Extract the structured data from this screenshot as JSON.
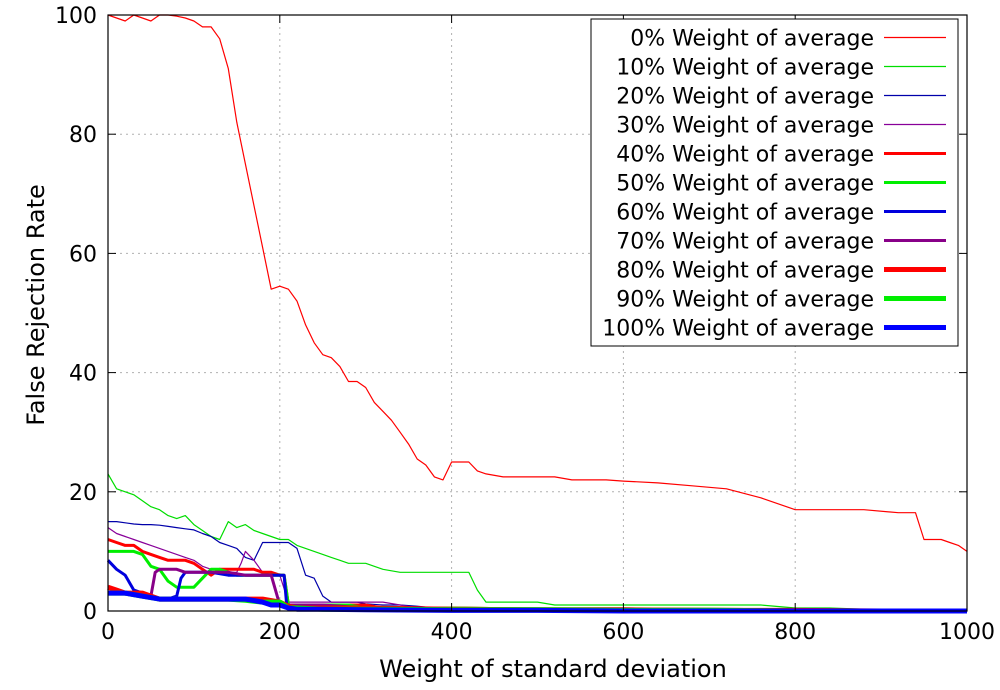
{
  "chart_data": {
    "type": "line",
    "title": "",
    "xlabel": "Weight of standard deviation",
    "ylabel": "False Rejection Rate",
    "xlim": [
      0,
      1000
    ],
    "ylim": [
      0,
      100
    ],
    "x_ticks": [
      0,
      200,
      400,
      600,
      800,
      1000
    ],
    "y_ticks": [
      0,
      20,
      40,
      60,
      80,
      100
    ],
    "grid": true,
    "legend_position": "top-right",
    "series": [
      {
        "name": "0% Weight of average",
        "color": "#ff0000",
        "weight": "thin",
        "x": [
          0,
          10,
          20,
          30,
          40,
          50,
          60,
          70,
          80,
          90,
          100,
          110,
          120,
          130,
          140,
          150,
          160,
          170,
          180,
          190,
          200,
          210,
          220,
          230,
          240,
          250,
          260,
          270,
          280,
          290,
          300,
          310,
          320,
          330,
          340,
          350,
          360,
          370,
          380,
          390,
          400,
          410,
          420,
          430,
          440,
          460,
          480,
          500,
          520,
          540,
          560,
          580,
          600,
          640,
          680,
          720,
          760,
          800,
          840,
          880,
          920,
          940,
          950,
          960,
          970,
          980,
          990,
          1000
        ],
        "values": [
          100,
          99.5,
          99,
          100,
          99.5,
          99,
          100,
          100,
          99.8,
          99.5,
          99,
          98,
          98,
          96,
          91,
          82,
          75,
          68,
          61,
          54,
          54.5,
          54,
          52,
          48,
          45,
          43,
          42.5,
          41,
          38.5,
          38.5,
          37.5,
          35,
          33.5,
          32,
          30,
          28,
          25.5,
          24.5,
          22.5,
          22,
          25,
          25,
          25,
          23.5,
          23,
          22.5,
          22.5,
          22.5,
          22.5,
          22,
          22,
          22,
          21.8,
          21.5,
          21,
          20.5,
          19,
          17,
          17,
          17,
          16.5,
          16.5,
          12,
          12,
          12,
          11.5,
          11,
          10
        ]
      },
      {
        "name": "10% Weight of average",
        "color": "#00dd00",
        "weight": "thin",
        "x": [
          0,
          10,
          20,
          30,
          40,
          50,
          60,
          70,
          80,
          90,
          100,
          110,
          120,
          130,
          140,
          150,
          160,
          170,
          180,
          190,
          200,
          210,
          220,
          230,
          240,
          250,
          260,
          270,
          280,
          290,
          300,
          320,
          340,
          360,
          380,
          400,
          420,
          430,
          440,
          460,
          480,
          500,
          520,
          560,
          600,
          640,
          680,
          720,
          760,
          800,
          840,
          880,
          920,
          960,
          1000
        ],
        "values": [
          23,
          20.5,
          20,
          19.5,
          18.5,
          17.5,
          17,
          16,
          15.5,
          16,
          14.5,
          13.5,
          12.5,
          12,
          15,
          14,
          14.5,
          13.5,
          13,
          12.5,
          12,
          12,
          11,
          10.5,
          10,
          9.5,
          9,
          8.5,
          8,
          8,
          8,
          7,
          6.5,
          6.5,
          6.5,
          6.5,
          6.5,
          3.5,
          1.5,
          1.5,
          1.5,
          1.5,
          1,
          1,
          1,
          1,
          1,
          1,
          1,
          0.5,
          0.5,
          0.3,
          0.2,
          0.1,
          0
        ]
      },
      {
        "name": "20% Weight of average",
        "color": "#0000aa",
        "weight": "thin",
        "x": [
          0,
          10,
          20,
          30,
          40,
          50,
          60,
          70,
          80,
          90,
          100,
          110,
          120,
          130,
          140,
          150,
          160,
          170,
          180,
          190,
          200,
          210,
          220,
          230,
          240,
          250,
          260,
          270,
          280,
          290,
          300,
          320,
          340,
          360,
          380,
          400,
          440,
          480,
          520,
          600,
          700,
          800,
          900,
          1000
        ],
        "values": [
          15,
          15,
          14.8,
          14.6,
          14.5,
          14.5,
          14.4,
          14.2,
          14,
          13.8,
          13.6,
          13,
          12.5,
          11.5,
          11,
          10.5,
          9,
          8.5,
          11.5,
          11.5,
          11.5,
          11.5,
          10.5,
          6,
          5.5,
          2.5,
          1.5,
          1.5,
          1.5,
          1.5,
          1.2,
          1,
          1,
          0.8,
          0.5,
          0.5,
          0.5,
          0.5,
          0.5,
          0.5,
          0.4,
          0.3,
          0.2,
          0.1
        ]
      },
      {
        "name": "30% Weight of average",
        "color": "#880099",
        "weight": "thin",
        "x": [
          0,
          10,
          20,
          30,
          40,
          50,
          60,
          70,
          80,
          90,
          100,
          110,
          120,
          130,
          140,
          150,
          155,
          160,
          170,
          180,
          190,
          200,
          210,
          220,
          230,
          240,
          260,
          280,
          300,
          320,
          340,
          360,
          400,
          500,
          600,
          700,
          800,
          900,
          1000
        ],
        "values": [
          14,
          13,
          12.5,
          12,
          11.5,
          11,
          10.5,
          10,
          9.5,
          9,
          8.5,
          7.5,
          7,
          6.8,
          6.5,
          6.5,
          8,
          10,
          8.5,
          6.5,
          6,
          6,
          1.5,
          1.5,
          1.5,
          1.5,
          1.5,
          1.5,
          1.5,
          1.5,
          1,
          0.5,
          0.5,
          0.5,
          0.4,
          0.3,
          0.2,
          0.1,
          0
        ]
      },
      {
        "name": "40% Weight of average",
        "color": "#ff0000",
        "weight": "medium",
        "x": [
          0,
          10,
          20,
          30,
          40,
          50,
          60,
          70,
          80,
          90,
          100,
          110,
          120,
          130,
          140,
          150,
          160,
          170,
          180,
          190,
          200,
          205,
          210,
          220,
          230,
          240,
          260,
          280,
          300,
          320,
          340,
          400,
          500,
          600,
          700,
          800,
          900,
          1000
        ],
        "values": [
          12,
          11.5,
          11,
          11,
          10,
          9.5,
          9,
          8.5,
          8.5,
          8.5,
          8,
          7,
          6,
          7,
          7,
          7,
          7,
          7,
          6.5,
          6.5,
          6,
          6,
          1,
          1,
          1,
          1,
          1,
          1,
          1,
          0.5,
          0.5,
          0.5,
          0.3,
          0.3,
          0.3,
          0.2,
          0.1,
          0
        ]
      },
      {
        "name": "50% Weight of average",
        "color": "#00ee00",
        "weight": "medium",
        "x": [
          0,
          10,
          20,
          30,
          40,
          50,
          60,
          70,
          80,
          90,
          100,
          110,
          120,
          130,
          140,
          150,
          160,
          170,
          180,
          190,
          200,
          205,
          210,
          230,
          250,
          280,
          300,
          350,
          400,
          500,
          600,
          700,
          800,
          900,
          1000
        ],
        "values": [
          10,
          10,
          10,
          10,
          9.5,
          7.5,
          7,
          5,
          4,
          4,
          4,
          5.5,
          7,
          7,
          6.5,
          6,
          6,
          6,
          6,
          6,
          6,
          6,
          1,
          1,
          1,
          1,
          0.5,
          0.5,
          0.5,
          0.3,
          0.3,
          0.3,
          0.2,
          0.1,
          0
        ]
      },
      {
        "name": "60% Weight of average",
        "color": "#0000dd",
        "weight": "medium",
        "x": [
          0,
          10,
          20,
          30,
          40,
          50,
          60,
          70,
          80,
          85,
          90,
          100,
          120,
          140,
          160,
          180,
          200,
          205,
          208,
          220,
          250,
          300,
          350,
          400,
          500,
          600,
          700,
          800,
          900,
          1000
        ],
        "values": [
          8.5,
          7,
          6,
          3.5,
          3,
          2.5,
          2,
          2,
          2.5,
          5.5,
          6.5,
          6.5,
          6.5,
          6,
          6,
          6,
          6,
          6,
          1,
          0.5,
          0.5,
          0.5,
          0.3,
          0.3,
          0.2,
          0.2,
          0.1,
          0.1,
          0,
          0
        ]
      },
      {
        "name": "70% Weight of average",
        "color": "#880088",
        "weight": "medium",
        "x": [
          0,
          10,
          20,
          30,
          40,
          50,
          55,
          60,
          70,
          80,
          90,
          100,
          120,
          140,
          160,
          180,
          190,
          200,
          220,
          250,
          300,
          400,
          500,
          600,
          700,
          800,
          900,
          1000
        ],
        "values": [
          3,
          3,
          3,
          2.8,
          2.5,
          2.5,
          6.5,
          7,
          7,
          7,
          6.5,
          6.5,
          6.5,
          6.5,
          6,
          6,
          6,
          1,
          1,
          1,
          0.5,
          0.3,
          0.2,
          0.2,
          0.1,
          0.1,
          0,
          0
        ]
      },
      {
        "name": "80% Weight of average",
        "color": "#ff0000",
        "weight": "thick",
        "x": [
          0,
          10,
          20,
          30,
          40,
          50,
          60,
          80,
          100,
          120,
          140,
          160,
          180,
          200,
          210,
          220,
          250,
          300,
          400,
          500,
          600,
          700,
          800,
          900,
          1000
        ],
        "values": [
          4,
          3.5,
          3,
          3,
          3,
          2.5,
          2,
          2,
          2,
          2,
          2,
          2,
          2,
          1.5,
          0.8,
          0.5,
          0.5,
          0.5,
          0.3,
          0.2,
          0.2,
          0.1,
          0.1,
          0,
          0
        ]
      },
      {
        "name": "90% Weight of average",
        "color": "#00ee00",
        "weight": "thick",
        "x": [
          0,
          20,
          40,
          60,
          80,
          100,
          120,
          140,
          160,
          180,
          200,
          210,
          220,
          250,
          300,
          400,
          500,
          600,
          700,
          800,
          900,
          1000
        ],
        "values": [
          3,
          3,
          2.5,
          2,
          2,
          2,
          2,
          2,
          1.8,
          1.5,
          1.5,
          0.5,
          0.5,
          0.3,
          0.3,
          0.2,
          0.2,
          0.1,
          0.1,
          0,
          0,
          0
        ]
      },
      {
        "name": "100% Weight of average",
        "color": "#0000ff",
        "weight": "thick",
        "x": [
          0,
          20,
          40,
          60,
          80,
          100,
          120,
          140,
          160,
          180,
          190,
          200,
          210,
          220,
          250,
          300,
          400,
          500,
          600,
          700,
          800,
          900,
          1000
        ],
        "values": [
          3,
          3,
          2.5,
          2,
          2,
          2,
          2,
          2,
          2,
          1.5,
          1,
          1,
          0.5,
          0.3,
          0.3,
          0.2,
          0.1,
          0.1,
          0,
          0,
          0,
          0,
          0
        ]
      }
    ]
  }
}
